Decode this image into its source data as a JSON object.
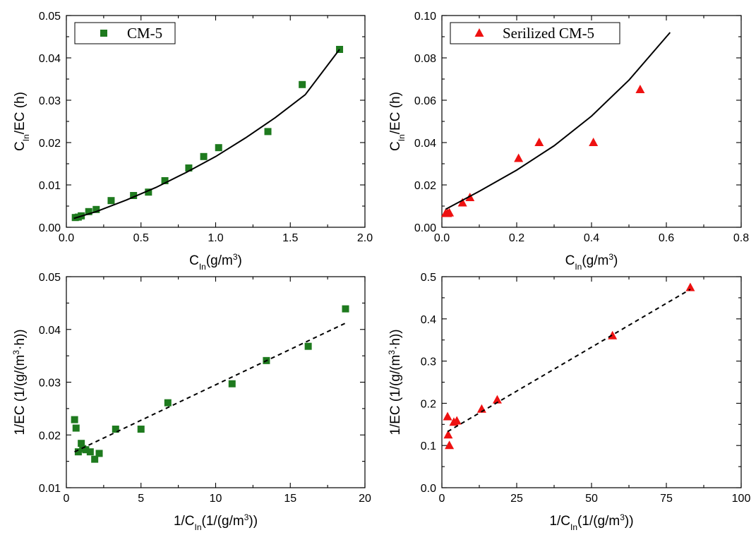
{
  "chart_data": [
    {
      "type": "scatter",
      "id": "p1",
      "title": "",
      "xlabel": {
        "main": "C",
        "sub": "In",
        "rest": "(g/m",
        "sup": "3",
        "end": ")"
      },
      "ylabel": {
        "main": "C",
        "sub": "In",
        "rest": "/EC (h)",
        "sup": "",
        "end": ""
      },
      "xlim": [
        0,
        2.0
      ],
      "ylim": [
        0,
        0.05
      ],
      "xticks": [
        0,
        0.5,
        1.0,
        1.5,
        2.0
      ],
      "xtick_labels": [
        "0.0",
        "0.5",
        "1.0",
        "1.5",
        "2.0"
      ],
      "yticks": [
        0,
        0.01,
        0.02,
        0.03,
        0.04,
        0.05
      ],
      "ytick_labels": [
        "0.00",
        "0.01",
        "0.02",
        "0.03",
        "0.04",
        "0.05"
      ],
      "grid": false,
      "legend": {
        "position": "top-left",
        "entries": [
          {
            "label": "CM-5",
            "marker": "square",
            "color": "#1e7a1e"
          }
        ]
      },
      "series": [
        {
          "name": "CM-5",
          "marker": "square",
          "color": "#1e7a1e",
          "x": [
            0.06,
            0.08,
            0.1,
            0.15,
            0.2,
            0.3,
            0.45,
            0.55,
            0.66,
            0.82,
            0.92,
            1.02,
            1.35,
            1.58,
            1.83
          ],
          "y": [
            0.0023,
            0.0024,
            0.0027,
            0.0037,
            0.0042,
            0.0063,
            0.0075,
            0.0083,
            0.011,
            0.014,
            0.0167,
            0.0188,
            0.0226,
            0.0337,
            0.042
          ]
        },
        {
          "kind": "fit",
          "style": "solid",
          "color": "#000000",
          "x": [
            0.05,
            0.2,
            0.4,
            0.6,
            0.8,
            1.0,
            1.2,
            1.4,
            1.6,
            1.83
          ],
          "y": [
            0.0021,
            0.0037,
            0.0064,
            0.0094,
            0.0129,
            0.0167,
            0.0211,
            0.0259,
            0.0313,
            0.042
          ]
        }
      ]
    },
    {
      "type": "scatter",
      "id": "p2",
      "title": "",
      "xlabel": {
        "main": "C",
        "sub": "In",
        "rest": "(g/m",
        "sup": "3",
        "end": ")"
      },
      "ylabel": {
        "main": "C",
        "sub": "In",
        "rest": "/EC (h)",
        "sup": "",
        "end": ""
      },
      "xlim": [
        0,
        0.8
      ],
      "ylim": [
        0,
        0.1
      ],
      "xticks": [
        0,
        0.2,
        0.4,
        0.6,
        0.8
      ],
      "xtick_labels": [
        "0.0",
        "0.2",
        "0.4",
        "0.6",
        "0.8"
      ],
      "yticks": [
        0,
        0.02,
        0.04,
        0.06,
        0.08,
        0.1
      ],
      "ytick_labels": [
        "0.00",
        "0.02",
        "0.04",
        "0.06",
        "0.08",
        "0.10"
      ],
      "grid": false,
      "legend": {
        "position": "top-left",
        "entries": [
          {
            "label": "Serilized CM-5",
            "marker": "triangle",
            "color": "#ee1111"
          }
        ]
      },
      "series": [
        {
          "name": "Serilized CM-5",
          "marker": "triangle",
          "color": "#ee1111",
          "x": [
            0.01,
            0.015,
            0.02,
            0.055,
            0.075,
            0.205,
            0.26,
            0.405,
            0.53
          ],
          "y": [
            0.0065,
            0.0065,
            0.0068,
            0.0115,
            0.014,
            0.0325,
            0.04,
            0.04,
            0.065
          ]
        },
        {
          "kind": "fit",
          "style": "solid",
          "color": "#000000",
          "x": [
            0.01,
            0.1,
            0.2,
            0.3,
            0.4,
            0.5,
            0.61
          ],
          "y": [
            0.0085,
            0.017,
            0.027,
            0.0385,
            0.0525,
            0.0695,
            0.092
          ]
        }
      ]
    },
    {
      "type": "scatter",
      "id": "p3",
      "title": "",
      "xlabel": {
        "main": "1/C",
        "sub": "In",
        "rest": "(1/(g/m",
        "sup": "3",
        "end": "))"
      },
      "ylabel": {
        "main": "1/EC (1/(g/(m",
        "sub": "",
        "rest": "",
        "sup": "3",
        "end": "·h))"
      },
      "xlim": [
        0,
        20
      ],
      "ylim": [
        0.01,
        0.05
      ],
      "xticks": [
        0,
        5,
        10,
        15,
        20
      ],
      "xtick_labels": [
        "0",
        "5",
        "10",
        "15",
        "20"
      ],
      "yticks": [
        0.01,
        0.02,
        0.03,
        0.04,
        0.05
      ],
      "ytick_labels": [
        "0.01",
        "0.02",
        "0.03",
        "0.04",
        "0.05"
      ],
      "grid": false,
      "legend": null,
      "series": [
        {
          "name": "",
          "marker": "square",
          "color": "#1e7a1e",
          "x": [
            0.55,
            0.65,
            0.8,
            1.0,
            1.1,
            1.3,
            1.6,
            1.9,
            2.2,
            3.3,
            5.0,
            6.8,
            11.1,
            13.4,
            16.2,
            18.7
          ],
          "y": [
            0.0229,
            0.0213,
            0.0168,
            0.0184,
            0.0174,
            0.0172,
            0.0168,
            0.0154,
            0.0165,
            0.0211,
            0.0211,
            0.0261,
            0.0297,
            0.0341,
            0.0368,
            0.0439
          ]
        },
        {
          "kind": "fit",
          "style": "dashed",
          "color": "#000000",
          "x": [
            0.55,
            18.7
          ],
          "y": [
            0.0168,
            0.0412
          ]
        }
      ]
    },
    {
      "type": "scatter",
      "id": "p4",
      "title": "",
      "xlabel": {
        "main": "1/C",
        "sub": "In",
        "rest": "(1/(g/m",
        "sup": "3",
        "end": "))"
      },
      "ylabel": {
        "main": "1/EC (1/(g/(m",
        "sub": "",
        "rest": "",
        "sup": "3",
        "end": "·h))"
      },
      "xlim": [
        0,
        100
      ],
      "ylim": [
        0,
        0.5
      ],
      "xticks": [
        0,
        25,
        50,
        75,
        100
      ],
      "xtick_labels": [
        "0",
        "25",
        "50",
        "75",
        "100"
      ],
      "yticks": [
        0,
        0.1,
        0.2,
        0.3,
        0.4,
        0.5
      ],
      "ytick_labels": [
        "0.0",
        "0.1",
        "0.2",
        "0.3",
        "0.4",
        "0.5"
      ],
      "grid": false,
      "legend": null,
      "series": [
        {
          "name": "",
          "marker": "triangle",
          "color": "#ee1111",
          "x": [
            1.9,
            2.1,
            2.5,
            4.0,
            5.0,
            13.3,
            18.5,
            57.0,
            83.0
          ],
          "y": [
            0.168,
            0.125,
            0.1,
            0.155,
            0.158,
            0.186,
            0.208,
            0.36,
            0.474
          ]
        },
        {
          "kind": "fit",
          "style": "dashed",
          "color": "#000000",
          "x": [
            1.9,
            83.0
          ],
          "y": [
            0.133,
            0.47
          ]
        }
      ]
    }
  ]
}
